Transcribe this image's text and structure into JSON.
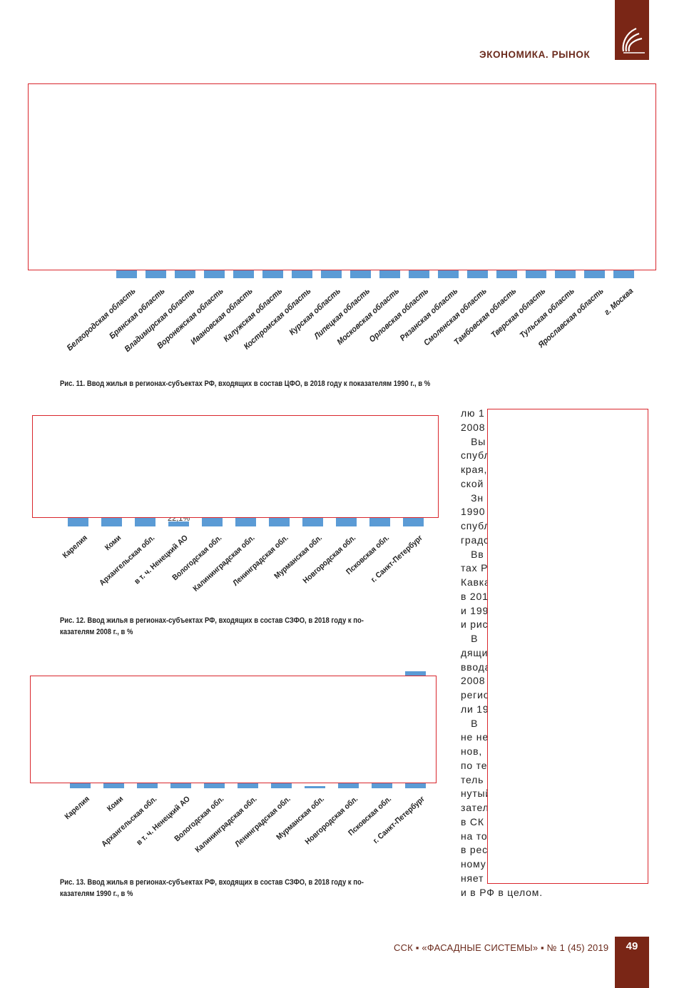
{
  "header": {
    "section_title": "ЭКОНОМИКА. РЫНОК",
    "logo_icon": "stylized-leaf-logo-icon",
    "brand_color": "#7a2616"
  },
  "fig11": {
    "caption": "Рис. 11. Ввод жилья в регионах-субъектах РФ, входящих в состав ЦФО, в 2018 году к показателям 1990 г., в %",
    "categories": [
      "Белгородская область",
      "Брянская область",
      "Владимирская область",
      "Воронежская область",
      "Ивановская область",
      "Калужская область",
      "Костромская область",
      "Курская область",
      "Липецкая область",
      "Московская область",
      "Орловская область",
      "Рязанская область",
      "Смоленская область",
      "Тамбовская область",
      "Тверская область",
      "Тульская область",
      "Ярославская область",
      "г. Москва"
    ],
    "bar_color": "#5b9bd5"
  },
  "fig12": {
    "caption": "Рис. 12. Ввод жилья в регионах-субъектах РФ, входящих в состав СЗФО, в 2018 году к по-\nказателям 2008 г., в %",
    "categories": [
      "Карелия",
      "Коми",
      "Архангельская обл.",
      "в т. ч. Ненецкий АО",
      "Вологодская обл.",
      "Калининградская обл.",
      "Ленинградская обл.",
      "Мурманская обл.",
      "Новгородская обл.",
      "Псковская обл.",
      "г. Санкт-Петербург"
    ],
    "visible_data_label": "22,1%"
  },
  "fig13": {
    "caption": "Рис. 13. Ввод жилья в регионах-субъектах РФ, входящих в состав СЗФО, в 2018 году к по-\nказателям 1990 г., в %",
    "categories": [
      "Карелия",
      "Коми",
      "Архангельская обл.",
      "в т. ч. Ненецкий АО",
      "Вологодская обл.",
      "Калининградская обл.",
      "Ленинградская обл.",
      "Мурманская обл.",
      "Новгородская обл.",
      "Псковская обл.",
      "г. Санкт-Петербург"
    ]
  },
  "column_text": [
    "лю 1",
    "2008",
    "   Вы",
    "спубл",
    "края,",
    "ской",
    "   Зн",
    "1990",
    "спубл",
    "градс",
    "   Вв",
    "тах Р",
    "Кавка",
    "в 201",
    "и 199",
    "и рис",
    "   В",
    "дящи",
    "ввода",
    "2008",
    "регио",
    "ли 19",
    "   В",
    "не не",
    "нов,",
    "по те",
    "тель",
    "нутый",
    "зател",
    "в СК",
    "на то",
    "в рес",
    "ному",
    "няет",
    "и в РФ в целом."
  ],
  "footer": {
    "journal": "ССК ▪ «ФАСАДНЫЕ СИСТЕМЫ» ▪ № 1 (45) 2019",
    "page_number": "49"
  }
}
